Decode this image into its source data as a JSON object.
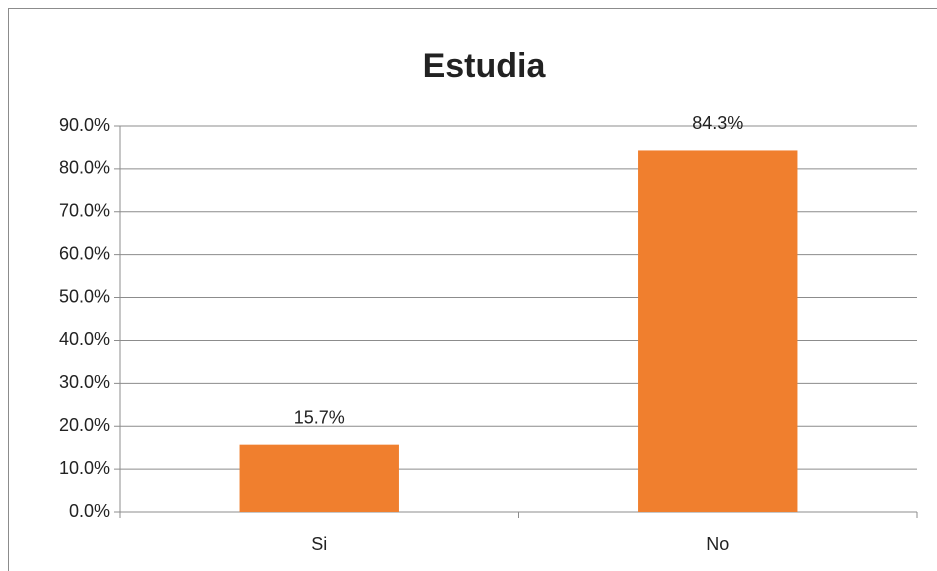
{
  "chart_data": {
    "type": "bar",
    "title": "Estudia",
    "categories": [
      "Si",
      "No"
    ],
    "values": [
      15.7,
      84.3
    ],
    "value_labels": [
      "15.7%",
      "84.3%"
    ],
    "color": "#f07f2e",
    "ylim": [
      0,
      90
    ],
    "yticks": [
      {
        "value": 0,
        "label": "0.0%"
      },
      {
        "value": 10,
        "label": "10.0%"
      },
      {
        "value": 20,
        "label": "20.0%"
      },
      {
        "value": 30,
        "label": "30.0%"
      },
      {
        "value": 40,
        "label": "40.0%"
      },
      {
        "value": 50,
        "label": "50.0%"
      },
      {
        "value": 60,
        "label": "60.0%"
      },
      {
        "value": 70,
        "label": "70.0%"
      },
      {
        "value": 80,
        "label": "80.0%"
      },
      {
        "value": 90,
        "label": "90.0%"
      }
    ],
    "grid": true
  }
}
